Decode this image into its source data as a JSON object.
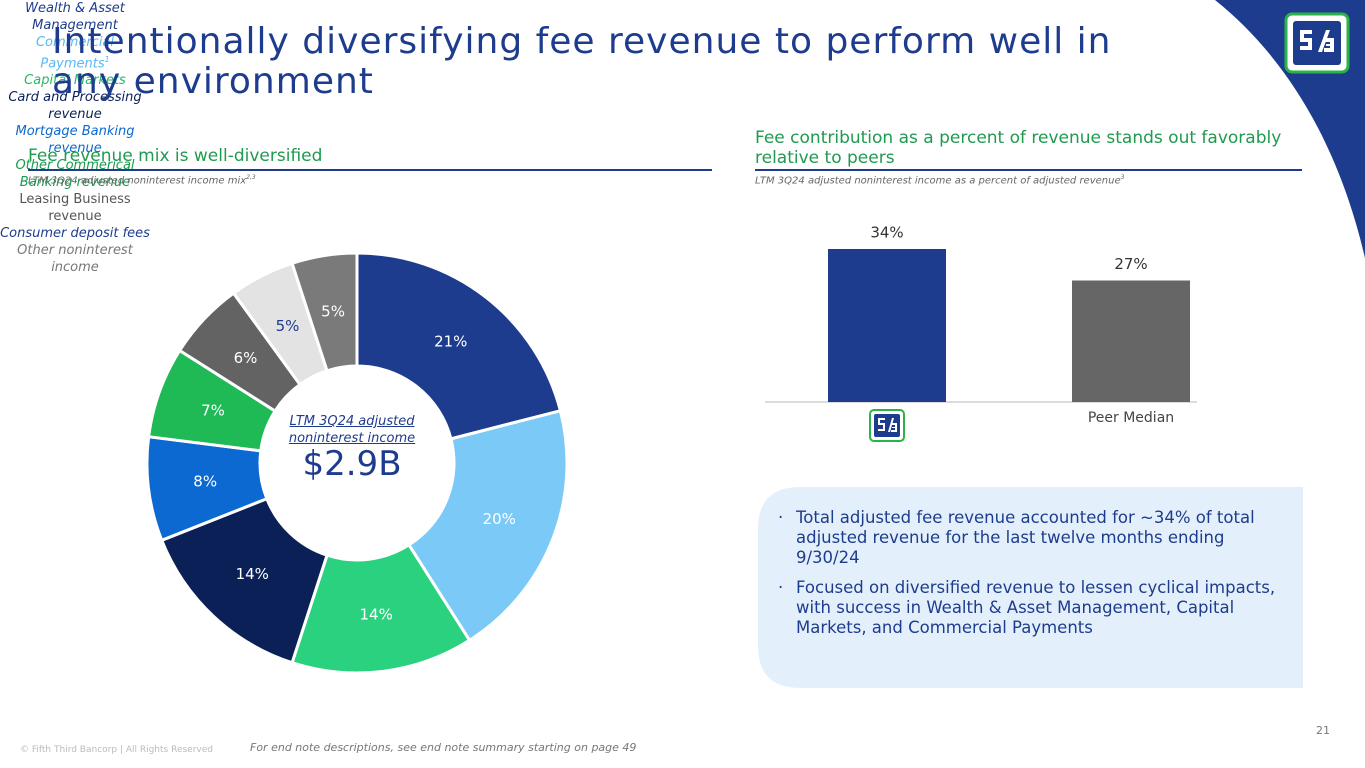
{
  "slide": {
    "title": "Intentionally diversifying fee revenue to perform well in any environment",
    "bullets": [
      "Total adjusted fee revenue accounted for ~34% of total adjusted revenue for the last twelve months ending 9/30/24",
      "Focused on diversified revenue to lessen cyclical impacts, with success in Wealth & Asset Management, Capital Markets, and Commercial Payments"
    ],
    "page_number": "21",
    "copyright": "© Fifth Third Bancorp | All Rights Reserved",
    "footnote": "For end note descriptions, see end note summary starting on page 49"
  },
  "chart_data": [
    {
      "type": "donut",
      "heading": "Fee revenue mix is well-diversified",
      "subtitle": "LTM 3Q24 adjusted noninterest income mix",
      "subtitle_note": "2,3",
      "center_label": "LTM 3Q24 adjusted noninterest income",
      "center_value": "$2.9B",
      "categories": [
        "Wealth & Asset Management",
        "Commercial Payments",
        "Capital Markets",
        "Card and Processing revenue",
        "Mortgage Banking revenue",
        "Other Commerical Banking revenue",
        "Leasing Business revenue",
        "Consumer deposit fees",
        "Other noninterest income"
      ],
      "category_notes": [
        null,
        "1",
        null,
        null,
        null,
        null,
        null,
        null,
        null
      ],
      "values": [
        21,
        20,
        14,
        14,
        8,
        7,
        6,
        5,
        5
      ],
      "value_labels": [
        "21%",
        "20%",
        "14%",
        "14%",
        "8%",
        "7%",
        "6%",
        "5%",
        "5%"
      ],
      "colors": [
        "#1e3c8e",
        "#7ac9f7",
        "#2ad17e",
        "#0b2057",
        "#0b69d1",
        "#1fba55",
        "#636363",
        "#e3e3e3",
        "#7a7a7a"
      ]
    },
    {
      "type": "bar",
      "heading": "Fee contribution as a percent of revenue stands out favorably relative to peers",
      "subtitle": "LTM 3Q24 adjusted noninterest income as a percent of adjusted revenue",
      "subtitle_note": "3",
      "categories": [
        null,
        "Peer Median"
      ],
      "values": [
        34,
        27
      ],
      "value_labels": [
        "34%",
        "27%"
      ],
      "colors": [
        "#1e3c8e",
        "#666666"
      ],
      "ylim": [
        0,
        40
      ]
    }
  ]
}
